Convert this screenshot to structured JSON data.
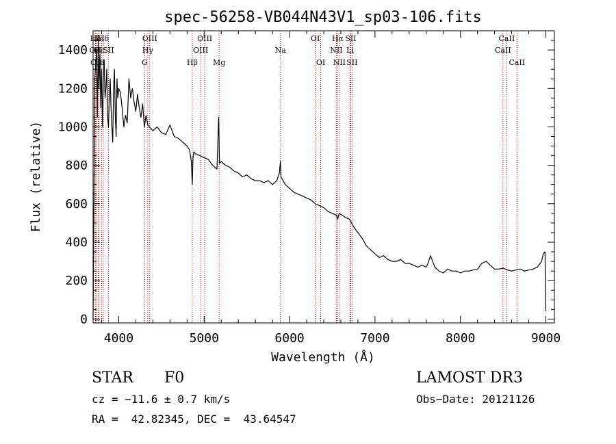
{
  "chart_data": {
    "type": "line",
    "title": "spec-56258-VB044N43V1_sp03-106.fits",
    "xlabel": "Wavelength (Å)",
    "ylabel": "Flux (relative)",
    "xlim": [
      3700,
      9100
    ],
    "ylim": [
      -20,
      1500
    ],
    "x_ticks": [
      4000,
      5000,
      6000,
      7000,
      8000,
      9000
    ],
    "y_ticks": [
      0,
      200,
      400,
      600,
      800,
      1000,
      1200,
      1400
    ],
    "line_color": "#000000",
    "marker_color": "#cc0000",
    "series": [
      {
        "name": "flux",
        "x": [
          3700,
          3710,
          3720,
          3730,
          3740,
          3750,
          3760,
          3770,
          3780,
          3790,
          3800,
          3810,
          3820,
          3830,
          3840,
          3850,
          3860,
          3870,
          3880,
          3890,
          3900,
          3910,
          3920,
          3930,
          3940,
          3950,
          3960,
          3970,
          3980,
          3990,
          4000,
          4020,
          4040,
          4060,
          4080,
          4100,
          4120,
          4140,
          4160,
          4180,
          4200,
          4220,
          4240,
          4260,
          4280,
          4300,
          4320,
          4340,
          4360,
          4380,
          4400,
          4450,
          4500,
          4550,
          4600,
          4650,
          4700,
          4750,
          4800,
          4830,
          4850,
          4861,
          4870,
          4880,
          4900,
          4950,
          5000,
          5050,
          5100,
          5150,
          5170,
          5180,
          5200,
          5250,
          5300,
          5350,
          5400,
          5450,
          5500,
          5550,
          5600,
          5650,
          5700,
          5750,
          5800,
          5850,
          5880,
          5893,
          5900,
          5950,
          6000,
          6050,
          6100,
          6150,
          6200,
          6250,
          6300,
          6350,
          6400,
          6450,
          6500,
          6550,
          6563,
          6580,
          6600,
          6650,
          6700,
          6750,
          6800,
          6850,
          6900,
          6950,
          7000,
          7050,
          7100,
          7150,
          7200,
          7250,
          7300,
          7350,
          7400,
          7450,
          7500,
          7550,
          7600,
          7620,
          7650,
          7700,
          7750,
          7800,
          7850,
          7900,
          7950,
          8000,
          8050,
          8100,
          8150,
          8200,
          8250,
          8300,
          8350,
          8400,
          8450,
          8500,
          8550,
          8600,
          8650,
          8700,
          8750,
          8800,
          8850,
          8900,
          8950,
          8970,
          8990,
          9000
        ],
        "y": [
          0,
          580,
          1250,
          1320,
          1400,
          1050,
          1450,
          1200,
          1380,
          1100,
          1300,
          1000,
          1250,
          1350,
          1150,
          1200,
          1300,
          1050,
          1000,
          1150,
          1250,
          1100,
          1000,
          920,
          1200,
          1300,
          1050,
          950,
          1250,
          1150,
          1200,
          1180,
          1100,
          1000,
          1060,
          1020,
          1250,
          1150,
          1200,
          1130,
          1080,
          1170,
          1100,
          1050,
          1120,
          1000,
          1060,
          1010,
          1000,
          990,
          980,
          1000,
          970,
          960,
          1010,
          950,
          940,
          920,
          900,
          880,
          820,
          700,
          840,
          870,
          860,
          850,
          840,
          830,
          800,
          780,
          1050,
          810,
          820,
          800,
          790,
          770,
          760,
          740,
          750,
          730,
          720,
          720,
          710,
          720,
          700,
          720,
          760,
          820,
          740,
          700,
          680,
          660,
          650,
          640,
          630,
          620,
          600,
          590,
          580,
          560,
          550,
          540,
          520,
          550,
          545,
          530,
          520,
          480,
          450,
          420,
          380,
          360,
          340,
          320,
          330,
          310,
          300,
          300,
          310,
          290,
          290,
          280,
          270,
          280,
          270,
          290,
          330,
          270,
          250,
          240,
          260,
          250,
          250,
          240,
          250,
          250,
          255,
          260,
          290,
          300,
          280,
          260,
          260,
          265,
          255,
          250,
          255,
          260,
          250,
          255,
          260,
          270,
          300,
          340,
          350,
          40
        ]
      }
    ],
    "line_markers": [
      {
        "label": "Hδ",
        "x": 3730,
        "row": 1
      },
      {
        "label": "K",
        "x": 3760,
        "row": 1
      },
      {
        "label": "Hδ",
        "x": 3820,
        "row": 1
      },
      {
        "label": "OII",
        "x": 3727,
        "row": 2
      },
      {
        "label": "Hε",
        "x": 3770,
        "row": 2
      },
      {
        "label": "SII",
        "x": 3880,
        "row": 2
      },
      {
        "label": "OII",
        "x": 3740,
        "row": 3
      },
      {
        "label": "H",
        "x": 3800,
        "row": 3
      },
      {
        "label": "OIII",
        "x": 4363,
        "row": 1
      },
      {
        "label": "Hγ",
        "x": 4340,
        "row": 2
      },
      {
        "label": "G",
        "x": 4304,
        "row": 3
      },
      {
        "label": "OIII",
        "x": 5007,
        "row": 1
      },
      {
        "label": "OIII",
        "x": 4959,
        "row": 2
      },
      {
        "label": "Hβ",
        "x": 4861,
        "row": 3
      },
      {
        "label": "Mg",
        "x": 5175,
        "row": 3
      },
      {
        "label": "Na",
        "x": 5893,
        "row": 2
      },
      {
        "label": "OI",
        "x": 6300,
        "row": 1
      },
      {
        "label": "OI",
        "x": 6364,
        "row": 3
      },
      {
        "label": "Hα",
        "x": 6563,
        "row": 1
      },
      {
        "label": "SII",
        "x": 6716,
        "row": 1
      },
      {
        "label": "NII",
        "x": 6548,
        "row": 2
      },
      {
        "label": "Li",
        "x": 6708,
        "row": 2
      },
      {
        "label": "NII",
        "x": 6583,
        "row": 3
      },
      {
        "label": "SII",
        "x": 6731,
        "row": 3
      },
      {
        "label": "CaII",
        "x": 8542,
        "row": 1
      },
      {
        "label": "CaII",
        "x": 8498,
        "row": 2
      },
      {
        "label": "CaII",
        "x": 8662,
        "row": 3
      }
    ]
  },
  "info": {
    "object_class": "STAR",
    "subclass": "F0",
    "survey": "LAMOST DR3",
    "cz": "cz = −11.6 ± 0.7 km/s",
    "obs_date": "Obs−Date: 20121126",
    "coords": "RA =  42.82345, DEC =  43.64547"
  }
}
